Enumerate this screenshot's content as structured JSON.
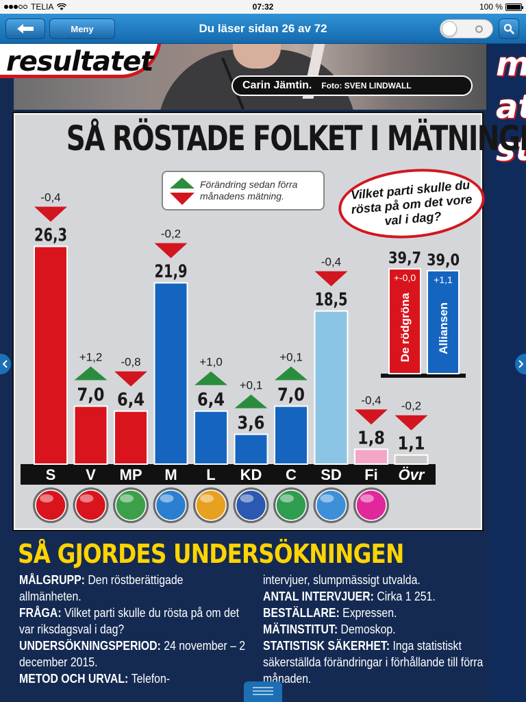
{
  "statusbar": {
    "carrier": "TELIA",
    "time": "07:32",
    "battery": "100 %",
    "battery_level": 1.0
  },
  "toolbar": {
    "back_icon": "arrow-left-icon",
    "menu_label": "Meny",
    "title": "Du läser sidan 26 av 72",
    "search_icon": "search-icon",
    "toggle_on": false
  },
  "photo": {
    "headline_fragment": "resultatet",
    "caption_name": "Carin Jämtin.",
    "caption_credit": "Foto: SVEN LINDWALL"
  },
  "right_column_fragments": [
    "m",
    "at",
    "st"
  ],
  "chart": {
    "title": "SÅ RÖSTADE FOLKET I MÄTNINGEN",
    "legend_text": "Förändring sedan förra månadens mätning.",
    "question": "Vilket parti skulle du rösta på om det vore val i dag?"
  },
  "chart_data": [
    {
      "type": "bar",
      "title": "SÅ RÖSTADE FOLKET I MÄTNINGEN",
      "categories": [
        "S",
        "V",
        "MP",
        "M",
        "L",
        "KD",
        "C",
        "SD",
        "Fi",
        "Övr"
      ],
      "values": [
        26.3,
        7.0,
        6.4,
        21.9,
        6.4,
        3.6,
        7.0,
        18.5,
        1.8,
        1.1
      ],
      "value_labels": [
        "26,3",
        "7,0",
        "6,4",
        "21,9",
        "6,4",
        "3,6",
        "7,0",
        "18,5",
        "1,8",
        "1,1"
      ],
      "changes": [
        -0.4,
        1.2,
        -0.8,
        -0.2,
        1.0,
        0.1,
        0.1,
        -0.4,
        -0.4,
        -0.2
      ],
      "change_labels": [
        "-0,4",
        "+1,2",
        "-0,8",
        "-0,2",
        "+1,0",
        "+0,1",
        "+0,1",
        "-0,4",
        "-0,4",
        "-0,2"
      ],
      "colors": [
        "#d9141d",
        "#d9141d",
        "#d9141d",
        "#1565c0",
        "#1565c0",
        "#1565c0",
        "#1565c0",
        "#8cc4e6",
        "#f4a6c8",
        "#c8c8c8"
      ],
      "ylim": [
        0,
        27
      ],
      "grid": false
    },
    {
      "type": "bar",
      "categories": [
        "De rödgröna",
        "Alliansen"
      ],
      "values": [
        39.7,
        39.0
      ],
      "value_labels": [
        "39,7",
        "39,0"
      ],
      "change_labels": [
        "+-0,0",
        "+1,1"
      ],
      "colors": [
        "#d9141d",
        "#1565c0"
      ],
      "ylim": [
        0,
        40
      ]
    }
  ],
  "party_logo_colors": [
    "#d9141d",
    "#d9141d",
    "#3ca04a",
    "#2b7fd0",
    "#e8a020",
    "#2b58b0",
    "#2e9d50",
    "#3d8fd8",
    "#e0289a"
  ],
  "methodology": {
    "title": "SÅ GJORDES UNDERSÖKNINGEN",
    "left": [
      {
        "k": "MÅLGRUPP:",
        "v": "Den röstberättigade allmänheten."
      },
      {
        "k": "FRÅGA:",
        "v": "Vilket parti skulle du rösta på om det var riksdagsval i dag?"
      },
      {
        "k": "UNDERSÖKNINGSPERIOD:",
        "v": "24 november – 2 december 2015."
      },
      {
        "k": "METOD OCH URVAL:",
        "v": "Telefon-"
      }
    ],
    "right": [
      {
        "k": "",
        "v": "intervjuer, slumpmässigt utvalda."
      },
      {
        "k": "ANTAL INTERVJUER:",
        "v": "Cirka 1 251."
      },
      {
        "k": "BESTÄLLARE:",
        "v": "Expressen."
      },
      {
        "k": "MÄTINSTITUT:",
        "v": "Demoskop."
      },
      {
        "k": "STATISTISK SÄKERHET:",
        "v": "Inga statistiskt säkerställda förändringar i förhållande till förra månaden."
      }
    ]
  }
}
